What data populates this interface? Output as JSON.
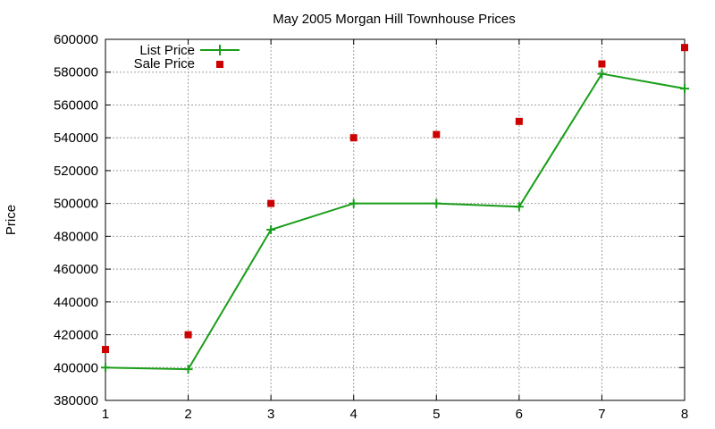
{
  "chart_data": {
    "type": "line",
    "title": "May 2005 Morgan Hill Townhouse Prices",
    "xlabel": "",
    "ylabel": "Price",
    "x": [
      1,
      2,
      3,
      4,
      5,
      6,
      7,
      8
    ],
    "xlim": [
      1,
      8
    ],
    "ylim": [
      380000,
      600000
    ],
    "xticks": [
      "1",
      "2",
      "3",
      "4",
      "5",
      "6",
      "7",
      "8"
    ],
    "yticks": [
      "380000",
      "400000",
      "420000",
      "440000",
      "460000",
      "480000",
      "500000",
      "520000",
      "540000",
      "560000",
      "580000",
      "600000"
    ],
    "grid": true,
    "legend_position": "top-left",
    "series": [
      {
        "name": "List Price",
        "kind": "line",
        "color": "#1a9e1a",
        "marker": "plus",
        "values": [
          400000,
          399000,
          484000,
          500000,
          500000,
          498000,
          579000,
          570000
        ]
      },
      {
        "name": "Sale Price",
        "kind": "points",
        "color": "#cc0000",
        "marker": "square",
        "values": [
          411000,
          420000,
          500000,
          540000,
          542000,
          550000,
          585000,
          595000
        ]
      }
    ]
  }
}
